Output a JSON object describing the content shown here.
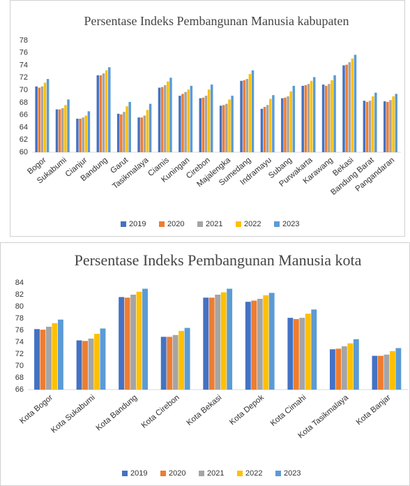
{
  "chart_data": [
    {
      "type": "bar",
      "title": "Persentase Indeks Pembangunan Manusia kabupaten",
      "categories": [
        "Bogor",
        "Sukabumi",
        "Cianjur",
        "Bandung",
        "Garut",
        "Tasikmalaya",
        "Ciamis",
        "Kuningan",
        "Cirebon",
        "Majalengka",
        "Sumedang",
        "Indramayu",
        "Subang",
        "Purwakarta",
        "Karawang",
        "Bekasi",
        "Bandung Barat",
        "Pangandaran"
      ],
      "series": [
        {
          "name": "2019",
          "color": "#4472c4",
          "values": [
            70.6,
            66.9,
            65.4,
            72.4,
            66.2,
            65.6,
            70.4,
            69.1,
            68.7,
            67.5,
            71.5,
            67.0,
            68.7,
            70.7,
            70.9,
            74.0,
            68.3,
            68.2
          ]
        },
        {
          "name": "2020",
          "color": "#ed7d31",
          "values": [
            70.4,
            66.9,
            65.4,
            72.4,
            66.1,
            65.6,
            70.5,
            69.4,
            68.8,
            67.6,
            71.6,
            67.3,
            68.8,
            70.8,
            70.7,
            74.1,
            68.1,
            68.1
          ]
        },
        {
          "name": "2021",
          "color": "#a5a5a5",
          "values": [
            70.6,
            67.1,
            65.6,
            72.7,
            66.5,
            65.9,
            70.8,
            69.7,
            69.1,
            67.8,
            71.8,
            67.6,
            69.0,
            71.0,
            71.0,
            74.5,
            68.3,
            68.4
          ]
        },
        {
          "name": "2022",
          "color": "#ffc000",
          "values": [
            71.2,
            67.6,
            65.9,
            73.2,
            67.4,
            66.8,
            71.4,
            70.1,
            70.1,
            68.5,
            72.6,
            68.6,
            69.8,
            71.5,
            71.6,
            75.1,
            69.0,
            69.0
          ]
        },
        {
          "name": "2023",
          "color": "#5b9bd5",
          "values": [
            71.8,
            68.5,
            66.6,
            73.7,
            68.1,
            67.8,
            72.0,
            70.7,
            70.9,
            69.1,
            73.2,
            69.2,
            70.7,
            72.1,
            72.4,
            75.7,
            69.6,
            69.4
          ]
        }
      ],
      "ylim": [
        60,
        78
      ],
      "yticks": [
        60,
        62,
        64,
        66,
        68,
        70,
        72,
        74,
        76,
        78
      ]
    },
    {
      "type": "bar",
      "title": "Persentase Indeks Pembangunan Manusia kota",
      "categories": [
        "Kota Bogor",
        "Kota Sukabumi",
        "Kota Bandung",
        "Kota Cirebon",
        "Kota Bekasi",
        "Kota Depok",
        "Kota Cimahi",
        "Kota Tasikmalaya",
        "Kota Banjar"
      ],
      "series": [
        {
          "name": "2019",
          "color": "#4472c4",
          "values": [
            76.2,
            74.3,
            81.6,
            74.9,
            81.5,
            80.8,
            78.1,
            72.8,
            71.7
          ]
        },
        {
          "name": "2020",
          "color": "#ed7d31",
          "values": [
            76.1,
            74.2,
            81.5,
            74.9,
            81.5,
            81.0,
            77.9,
            72.9,
            71.7
          ]
        },
        {
          "name": "2021",
          "color": "#a5a5a5",
          "values": [
            76.6,
            74.6,
            82.0,
            75.2,
            82.0,
            81.3,
            78.1,
            73.3,
            71.9
          ]
        },
        {
          "name": "2022",
          "color": "#ffc000",
          "values": [
            77.2,
            75.4,
            82.5,
            75.9,
            82.4,
            81.9,
            78.8,
            73.8,
            72.5
          ]
        },
        {
          "name": "2023",
          "color": "#5b9bd5",
          "values": [
            77.8,
            76.3,
            83.0,
            76.4,
            83.0,
            82.3,
            79.5,
            74.5,
            73.0
          ]
        }
      ],
      "ylim": [
        66,
        84
      ],
      "yticks": [
        66,
        68,
        70,
        72,
        74,
        76,
        78,
        80,
        82,
        84
      ]
    }
  ]
}
